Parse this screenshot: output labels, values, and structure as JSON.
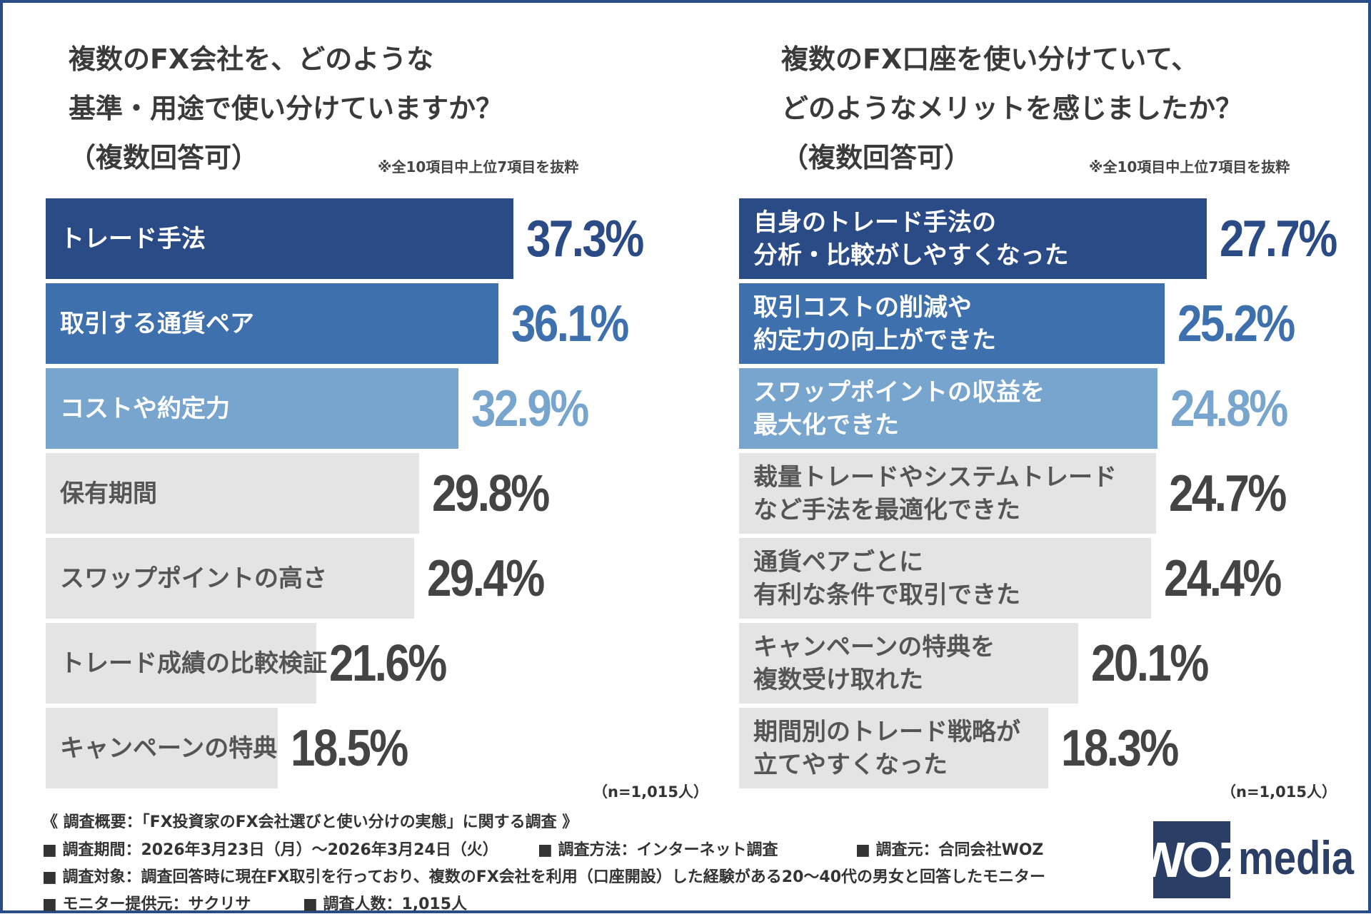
{
  "chart_data": [
    {
      "type": "hbar",
      "title": "複数のFX会社を、どのような\n基準・用途で使い分けていますか？\n（複数回答可）",
      "note": "※全10項目中上位7項目を抜粋",
      "sample": "（n=1,015人）",
      "categories": [
        "トレード手法",
        "取引する通貨ペア",
        "コストや約定力",
        "保有期間",
        "スワップポイントの高さ",
        "トレード成績の比較検証",
        "キャンペーンの特典"
      ],
      "values": [
        37.3,
        36.1,
        32.9,
        29.8,
        29.4,
        21.6,
        18.5
      ],
      "value_labels": [
        "37.3%",
        "36.1%",
        "32.9%",
        "29.8%",
        "29.4%",
        "21.6%",
        "18.5%"
      ],
      "colors": [
        "#2b4b87",
        "#3e70ad",
        "#78a5cd",
        "#e4e4e4",
        "#e4e4e4",
        "#e4e4e4",
        "#e4e4e4"
      ]
    },
    {
      "type": "hbar",
      "title": "複数のFX口座を使い分けていて、\nどのようなメリットを感じましたか？\n（複数回答可）",
      "note": "※全10項目中上位7項目を抜粋",
      "sample": "（n=1,015人）",
      "categories": [
        "自身のトレード手法の\n分析・比較がしやすくなった",
        "取引コストの削減や\n約定力の向上ができた",
        "スワップポイントの収益を\n最大化できた",
        "裁量トレードやシステムトレード\nなど手法を最適化できた",
        "通貨ペアごとに\n有利な条件で取引できた",
        "キャンペーンの特典を\n複数受け取れた",
        "期間別のトレード戦略が\n立てやすくなった"
      ],
      "values": [
        27.7,
        25.2,
        24.8,
        24.7,
        24.4,
        20.1,
        18.3
      ],
      "value_labels": [
        "27.7%",
        "25.2%",
        "24.8%",
        "24.7%",
        "24.4%",
        "20.1%",
        "18.3%"
      ],
      "colors": [
        "#2b4b87",
        "#3e70ad",
        "#78a5cd",
        "#e4e4e4",
        "#e4e4e4",
        "#e4e4e4",
        "#e4e4e4"
      ]
    }
  ],
  "footer": {
    "heading": "《 調査概要：「FX投資家のFX会社選びと使い分けの実態」に関する調査 》",
    "rows": [
      [
        "■ 調査期間：2026年3月23日（月）～2026年3月24日（火）",
        "■ 調査方法：インターネット調査",
        "■ 調査元：合同会社WOZ"
      ],
      [
        "■ 調査対象：調査回答時に現在FX取引を行っており、複数のFX会社を利用（口座開設）した経験がある20～40代の男女と回答したモニター"
      ],
      [
        "■ モニター提供元：サクリサ",
        "■ 調査人数：1,015人"
      ]
    ]
  },
  "logo": {
    "box": "WOZ",
    "text": "media"
  }
}
